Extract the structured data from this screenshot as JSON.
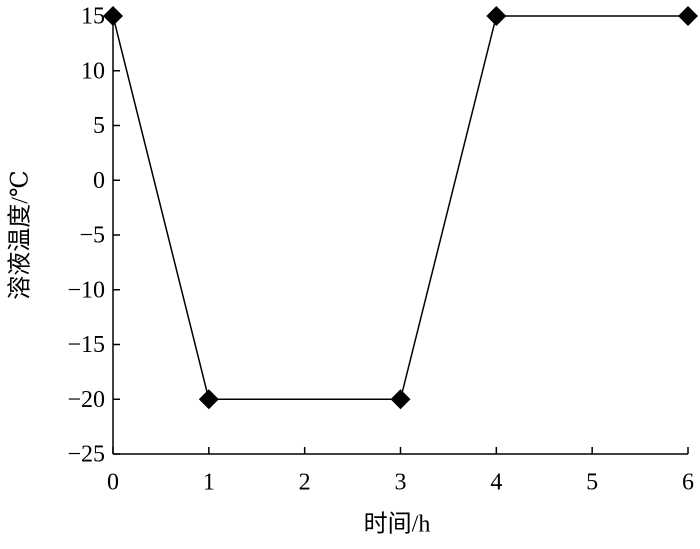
{
  "chart_data": {
    "type": "line",
    "x_label": "时间/h",
    "y_label": "溶液温度/℃",
    "x": [
      0,
      1,
      3,
      4,
      6
    ],
    "series": [
      {
        "values": [
          15,
          -20,
          -20,
          15,
          15
        ],
        "color": "#000000",
        "marker": "diamond"
      }
    ],
    "xlim": [
      0,
      6
    ],
    "xticks": [
      0,
      1,
      2,
      3,
      4,
      5,
      6
    ],
    "ylim": [
      -25,
      15
    ],
    "yticks": [
      {
        "value": -25,
        "label": "−25"
      },
      {
        "value": -20,
        "label": "−20"
      },
      {
        "value": -15,
        "label": "−15"
      },
      {
        "value": -10,
        "label": "−10"
      },
      {
        "value": -5,
        "label": "−5"
      },
      0,
      5,
      10,
      15
    ],
    "grid": false
  }
}
